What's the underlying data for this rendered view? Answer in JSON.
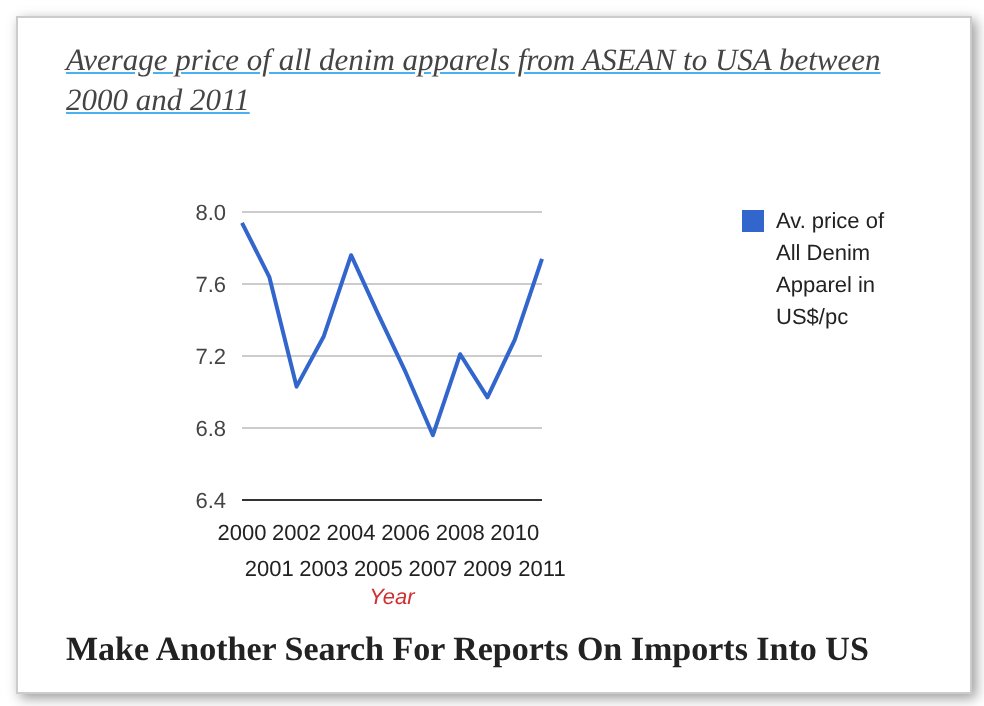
{
  "chart_data": {
    "type": "line",
    "title": "Average price of all denim apparels from ASEAN to USA between 2000 and 2011",
    "xlabel": "Year",
    "categories": [
      "2000",
      "2001",
      "2002",
      "2003",
      "2004",
      "2005",
      "2006",
      "2007",
      "2008",
      "2009",
      "2010",
      "2011"
    ],
    "series": [
      {
        "name": "Av. price of All Denim Apparel in US$/pc",
        "color": "#3366cc",
        "values": [
          7.94,
          7.64,
          7.03,
          7.31,
          7.76,
          7.43,
          7.11,
          6.76,
          7.21,
          6.97,
          7.29,
          7.74
        ]
      }
    ],
    "ylim": [
      6.4,
      8.0
    ],
    "yticks": [
      6.4,
      6.8,
      7.2,
      7.6,
      {
        "value": 8.0,
        "label": "8.0"
      }
    ],
    "grid": "y",
    "legend": "top right",
    "marker": "none",
    "line_style": "solid",
    "annotations": [
      "Make Another Search For Reports On Imports Into US"
    ]
  }
}
